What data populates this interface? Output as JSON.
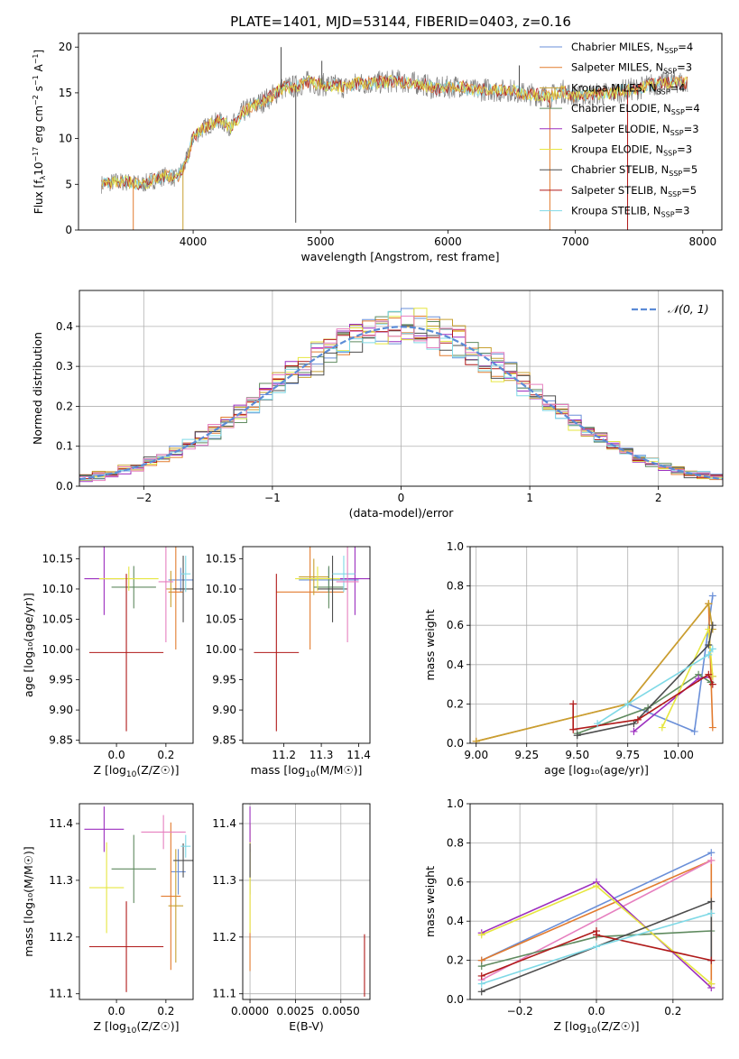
{
  "figure_title": "PLATE=1401, MJD=53144, FIBERID=0403, z=0.16",
  "colors": {
    "chabrier_miles": "#6a8fd8",
    "salpeter_miles": "#e27b2f",
    "kroupa_miles": "#c8a030",
    "chabrier_elodie": "#5f8a5f",
    "salpeter_elodie": "#9c2fbf",
    "kroupa_elodie": "#e6e640",
    "chabrier_stelib": "#4d4d4d",
    "salpeter_stelib": "#b01a1a",
    "kroupa_stelib": "#7fd9e6",
    "pink": "#e67fbf",
    "normal": "#5b8bd6",
    "grid": "#b0b0b0"
  },
  "chart_data": [
    {
      "id": "spectrum",
      "type": "line",
      "title": "PLATE=1401, MJD=53144, FIBERID=0403, z=0.16",
      "xlabel": "wavelength [Angstrom, rest frame]",
      "ylabel": "Flux [f_λ 10⁻¹⁷ erg cm⁻² s⁻¹ A⁻¹]",
      "xlim": [
        3100,
        8150
      ],
      "ylim": [
        0,
        21.5
      ],
      "xticks": [
        4000,
        5000,
        6000,
        7000,
        8000
      ],
      "yticks": [
        0,
        5,
        10,
        15,
        20
      ],
      "grid": false,
      "legend_position": "right",
      "legend": [
        {
          "label": "Chabrier MILES, N",
          "sub": "SSP",
          "tail": "=4",
          "color_key": "chabrier_miles"
        },
        {
          "label": "Salpeter MILES, N",
          "sub": "SSP",
          "tail": "=3",
          "color_key": "salpeter_miles"
        },
        {
          "label": "Kroupa MILES, N",
          "sub": "SSP",
          "tail": "=4",
          "color_key": "kroupa_miles"
        },
        {
          "label": "Chabrier ELODIE, N",
          "sub": "SSP",
          "tail": "=4",
          "color_key": "chabrier_elodie"
        },
        {
          "label": "Salpeter ELODIE, N",
          "sub": "SSP",
          "tail": "=3",
          "color_key": "salpeter_elodie"
        },
        {
          "label": "Kroupa ELODIE, N",
          "sub": "SSP",
          "tail": "=3",
          "color_key": "kroupa_elodie"
        },
        {
          "label": "Chabrier STELIB, N",
          "sub": "SSP",
          "tail": "=5",
          "color_key": "chabrier_stelib"
        },
        {
          "label": "Salpeter STELIB, N",
          "sub": "SSP",
          "tail": "=5",
          "color_key": "salpeter_stelib"
        },
        {
          "label": "Kroupa STELIB, N",
          "sub": "SSP",
          "tail": "=3",
          "color_key": "kroupa_stelib"
        }
      ],
      "continuum": [
        [
          3280,
          5.0
        ],
        [
          3400,
          5.3
        ],
        [
          3500,
          5.2
        ],
        [
          3600,
          5.0
        ],
        [
          3700,
          5.5
        ],
        [
          3800,
          6.0
        ],
        [
          3870,
          5.6
        ],
        [
          3950,
          7.6
        ],
        [
          4000,
          10.2
        ],
        [
          4100,
          11.3
        ],
        [
          4200,
          12.0
        ],
        [
          4300,
          11.2
        ],
        [
          4400,
          13.0
        ],
        [
          4500,
          13.7
        ],
        [
          4600,
          14.5
        ],
        [
          4700,
          15.5
        ],
        [
          4800,
          15.7
        ],
        [
          4900,
          16.2
        ],
        [
          5000,
          15.9
        ],
        [
          5100,
          15.8
        ],
        [
          5200,
          15.6
        ],
        [
          5300,
          16.1
        ],
        [
          5400,
          16.0
        ],
        [
          5500,
          16.2
        ],
        [
          5600,
          16.3
        ],
        [
          5700,
          16.1
        ],
        [
          5800,
          16.0
        ],
        [
          5900,
          15.4
        ],
        [
          6000,
          15.6
        ],
        [
          6100,
          15.8
        ],
        [
          6200,
          15.2
        ],
        [
          6300,
          15.4
        ],
        [
          6400,
          15.2
        ],
        [
          6500,
          15.3
        ],
        [
          6600,
          14.9
        ],
        [
          6700,
          14.8
        ],
        [
          6800,
          14.6
        ],
        [
          6900,
          15.2
        ],
        [
          7000,
          14.6
        ],
        [
          7100,
          14.8
        ],
        [
          7200,
          14.9
        ],
        [
          7300,
          15.0
        ],
        [
          7400,
          15.3
        ],
        [
          7500,
          15.5
        ],
        [
          7600,
          15.9
        ],
        [
          7700,
          16.1
        ],
        [
          7800,
          16.2
        ],
        [
          7880,
          16.1
        ]
      ],
      "spikes": [
        [
          3530,
          0
        ],
        [
          3920,
          0
        ],
        [
          4805,
          0.8
        ],
        [
          6800,
          0
        ],
        [
          7410,
          0
        ],
        [
          4690,
          20.0
        ],
        [
          5010,
          18.5
        ],
        [
          6560,
          18.0
        ]
      ]
    },
    {
      "id": "residuals",
      "type": "histogram",
      "xlabel": "(data-model)/error",
      "ylabel": "Normed distribution",
      "xlim": [
        -2.5,
        2.5
      ],
      "ylim": [
        0,
        0.49
      ],
      "xticks": [
        -2,
        -1,
        0,
        1,
        2
      ],
      "yticks": [
        0.0,
        0.1,
        0.2,
        0.3,
        0.4
      ],
      "grid": true,
      "legend_position": "top-right",
      "legend_label": "𝒩(0, 1)",
      "bin_width": 0.1
    },
    {
      "id": "age_vs_Z",
      "type": "errorbar",
      "xlabel_pre": "Z [log",
      "xlabel_sub": "10",
      "xlabel_post": "(Z/Z☉)]",
      "ylabel": "age  [log₁₀(age/yr)]",
      "xlim": [
        -0.15,
        0.31
      ],
      "ylim": [
        9.845,
        10.17
      ],
      "xticks": [
        0.0,
        0.2
      ],
      "yticks": [
        9.85,
        9.9,
        9.95,
        10.0,
        10.05,
        10.1,
        10.15
      ],
      "grid": false,
      "points": [
        {
          "c": "chabrier_miles",
          "x": 0.26,
          "xe": 0.05,
          "y": 10.115,
          "ye": 0.02
        },
        {
          "c": "salpeter_miles",
          "x": 0.24,
          "xe": 0.03,
          "y": 10.095,
          "ye": 0.095
        },
        {
          "c": "kroupa_miles",
          "x": 0.22,
          "xe": 0.02,
          "y": 10.1,
          "ye": 0.03
        },
        {
          "c": "chabrier_elodie",
          "x": 0.07,
          "xe": 0.09,
          "y": 10.103,
          "ye": 0.035
        },
        {
          "c": "salpeter_elodie",
          "x": -0.05,
          "xe": 0.08,
          "y": 10.117,
          "ye": 0.06
        },
        {
          "c": "kroupa_elodie",
          "x": 0.05,
          "xe": 0.12,
          "y": 10.117,
          "ye": 0.02
        },
        {
          "c": "chabrier_stelib",
          "x": 0.27,
          "xe": 0.04,
          "y": 10.1,
          "ye": 0.055
        },
        {
          "c": "salpeter_stelib",
          "x": 0.04,
          "xe": 0.15,
          "y": 9.995,
          "ye": 0.13
        },
        {
          "c": "kroupa_stelib",
          "x": 0.28,
          "xe": 0.02,
          "y": 10.125,
          "ye": 0.03
        },
        {
          "c": "pink",
          "x": 0.2,
          "xe": 0.03,
          "y": 10.112,
          "ye": 0.1
        }
      ]
    },
    {
      "id": "age_vs_mass",
      "type": "errorbar",
      "xlabel_pre": "mass [log",
      "xlabel_sub": "10",
      "xlabel_post": "(M/M☉)]",
      "ylabel": "",
      "xlim": [
        11.09,
        11.43
      ],
      "ylim": [
        9.845,
        10.17
      ],
      "xticks": [
        11.2,
        11.3,
        11.4
      ],
      "yticks": [
        9.85,
        9.9,
        9.95,
        10.0,
        10.05,
        10.1,
        10.15
      ],
      "grid": false,
      "points": [
        {
          "c": "chabrier_miles",
          "x": 11.32,
          "xe": 0.08,
          "y": 10.115,
          "ye": 0.02
        },
        {
          "c": "salpeter_miles",
          "x": 11.27,
          "xe": 0.09,
          "y": 10.095,
          "ye": 0.095
        },
        {
          "c": "kroupa_miles",
          "x": 11.28,
          "xe": 0.04,
          "y": 10.12,
          "ye": 0.03
        },
        {
          "c": "chabrier_elodie",
          "x": 11.32,
          "xe": 0.04,
          "y": 10.103,
          "ye": 0.035
        },
        {
          "c": "salpeter_elodie",
          "x": 11.39,
          "xe": 0.04,
          "y": 10.117,
          "ye": 0.06
        },
        {
          "c": "kroupa_elodie",
          "x": 11.29,
          "xe": 0.06,
          "y": 10.117,
          "ye": 0.02
        },
        {
          "c": "chabrier_stelib",
          "x": 11.33,
          "xe": 0.04,
          "y": 10.1,
          "ye": 0.055
        },
        {
          "c": "salpeter_stelib",
          "x": 11.18,
          "xe": 0.06,
          "y": 9.995,
          "ye": 0.13
        },
        {
          "c": "kroupa_stelib",
          "x": 11.36,
          "xe": 0.03,
          "y": 10.125,
          "ye": 0.03
        },
        {
          "c": "pink",
          "x": 11.37,
          "xe": 0.03,
          "y": 10.112,
          "ye": 0.1
        }
      ]
    },
    {
      "id": "weight_vs_age",
      "type": "line",
      "xlabel": "age  [log₁₀(age/yr)]",
      "ylabel": "mass weight",
      "xlim": [
        8.97,
        10.22
      ],
      "ylim": [
        0,
        1.0
      ],
      "xticks": [
        9.0,
        9.25,
        9.5,
        9.75,
        10.0
      ],
      "yticks": [
        0.0,
        0.2,
        0.4,
        0.6,
        0.8,
        1.0
      ],
      "grid": true,
      "series": [
        {
          "c": "chabrier_miles",
          "x": [
            9.75,
            10.08,
            10.17
          ],
          "y": [
            0.2,
            0.06,
            0.75
          ]
        },
        {
          "c": "salpeter_miles",
          "x": [
            9.0,
            9.75,
            10.15,
            10.17
          ],
          "y": [
            0.01,
            0.2,
            0.71,
            0.08
          ]
        },
        {
          "c": "kroupa_miles",
          "x": [
            9.0,
            9.75,
            10.15,
            10.17
          ],
          "y": [
            0.01,
            0.2,
            0.71,
            0.58
          ]
        },
        {
          "c": "chabrier_elodie",
          "x": [
            9.5,
            9.85,
            10.1,
            10.16
          ],
          "y": [
            0.05,
            0.18,
            0.35,
            0.31
          ]
        },
        {
          "c": "salpeter_elodie",
          "x": [
            9.78,
            10.1,
            10.17
          ],
          "y": [
            0.06,
            0.33,
            0.34
          ]
        },
        {
          "c": "kroupa_elodie",
          "x": [
            9.92,
            10.15,
            10.17
          ],
          "y": [
            0.08,
            0.58,
            0.34
          ]
        },
        {
          "c": "chabrier_stelib",
          "x": [
            9.5,
            9.78,
            10.15,
            10.17
          ],
          "y": [
            0.04,
            0.1,
            0.5,
            0.6
          ]
        },
        {
          "c": "salpeter_stelib",
          "x": [
            9.48,
            9.48,
            9.8,
            10.15,
            10.17
          ],
          "y": [
            0.2,
            0.07,
            0.12,
            0.35,
            0.3
          ]
        },
        {
          "c": "kroupa_stelib",
          "x": [
            9.6,
            9.75,
            10.15,
            10.17
          ],
          "y": [
            0.1,
            0.2,
            0.45,
            0.48
          ]
        }
      ]
    },
    {
      "id": "mass_vs_Z",
      "type": "errorbar",
      "xlabel_pre": "Z [log",
      "xlabel_sub": "10",
      "xlabel_post": "(Z/Z☉)]",
      "ylabel": "mass [log₁₀(M/M☉)]",
      "xlim": [
        -0.15,
        0.31
      ],
      "ylim": [
        11.09,
        11.435
      ],
      "xticks": [
        0.0,
        0.2
      ],
      "yticks": [
        11.1,
        11.2,
        11.3,
        11.4
      ],
      "grid": false,
      "points": [
        {
          "c": "chabrier_miles",
          "x": 0.25,
          "xe": 0.03,
          "y": 11.315,
          "ye": 0.04
        },
        {
          "c": "salpeter_miles",
          "x": 0.22,
          "xe": 0.04,
          "y": 11.272,
          "ye": 0.13
        },
        {
          "c": "kroupa_miles",
          "x": 0.24,
          "xe": 0.03,
          "y": 11.255,
          "ye": 0.1
        },
        {
          "c": "chabrier_elodie",
          "x": 0.07,
          "xe": 0.09,
          "y": 11.32,
          "ye": 0.06
        },
        {
          "c": "salpeter_elodie",
          "x": -0.05,
          "xe": 0.08,
          "y": 11.39,
          "ye": 0.04
        },
        {
          "c": "kroupa_elodie",
          "x": -0.04,
          "xe": 0.07,
          "y": 11.287,
          "ye": 0.08
        },
        {
          "c": "chabrier_stelib",
          "x": 0.27,
          "xe": 0.04,
          "y": 11.335,
          "ye": 0.03
        },
        {
          "c": "salpeter_stelib",
          "x": 0.04,
          "xe": 0.15,
          "y": 11.183,
          "ye": 0.08
        },
        {
          "c": "kroupa_stelib",
          "x": 0.28,
          "xe": 0.02,
          "y": 11.36,
          "ye": 0.02
        },
        {
          "c": "pink",
          "x": 0.19,
          "xe": 0.09,
          "y": 11.385,
          "ye": 0.03
        }
      ]
    },
    {
      "id": "mass_vs_ebv",
      "type": "errorbar",
      "xlabel_pre": "E(B-V)",
      "xlabel_sub": "",
      "xlabel_post": "",
      "ylabel": "",
      "xlim": [
        -0.0004,
        0.0066
      ],
      "ylim": [
        11.09,
        11.435
      ],
      "xticks": [
        0.0,
        0.0025,
        0.005
      ],
      "xtick_labels": [
        "0.0000",
        "0.0025",
        "0.0050"
      ],
      "yticks": [
        11.1,
        11.2,
        11.3,
        11.4
      ],
      "grid": true,
      "points": [
        {
          "c": "chabrier_miles",
          "x": 0.0,
          "xe": 0.0,
          "y": 11.315,
          "ye": 0.04
        },
        {
          "c": "salpeter_miles",
          "x": 0.0,
          "xe": 0.0,
          "y": 11.27,
          "ye": 0.13
        },
        {
          "c": "salpeter_elodie",
          "x": 0.0,
          "xe": 0.0,
          "y": 11.39,
          "ye": 0.04
        },
        {
          "c": "kroupa_elodie",
          "x": 0.0,
          "xe": 0.0,
          "y": 11.287,
          "ye": 0.08
        },
        {
          "c": "chabrier_stelib",
          "x": 0.0,
          "xe": 0.0,
          "y": 11.335,
          "ye": 0.03
        },
        {
          "c": "salpeter_stelib",
          "x": 0.0063,
          "xe": 0.0,
          "y": 11.15,
          "ye": 0.055
        }
      ]
    },
    {
      "id": "weight_vs_Z",
      "type": "line",
      "xlabel_pre": "Z [log",
      "xlabel_sub": "10",
      "xlabel_post": "(Z/Z☉)]",
      "ylabel": "mass weight",
      "xlim": [
        -0.33,
        0.33
      ],
      "ylim": [
        0,
        1.0
      ],
      "xticks": [
        -0.2,
        0.0,
        0.2
      ],
      "yticks": [
        0.0,
        0.2,
        0.4,
        0.6,
        0.8,
        1.0
      ],
      "grid": true,
      "series": [
        {
          "c": "chabrier_miles",
          "x": [
            -0.3,
            0.3
          ],
          "y": [
            0.2,
            0.75
          ]
        },
        {
          "c": "salpeter_miles",
          "x": [
            -0.3,
            0.3,
            0.3
          ],
          "y": [
            0.2,
            0.71,
            0.08
          ]
        },
        {
          "c": "pink",
          "x": [
            -0.3,
            0.3
          ],
          "y": [
            0.1,
            0.71
          ]
        },
        {
          "c": "chabrier_elodie",
          "x": [
            -0.3,
            0.0,
            0.3
          ],
          "y": [
            0.17,
            0.32,
            0.35
          ]
        },
        {
          "c": "salpeter_elodie",
          "x": [
            -0.3,
            0.0,
            0.3
          ],
          "y": [
            0.34,
            0.6,
            0.06
          ]
        },
        {
          "c": "kroupa_elodie",
          "x": [
            -0.3,
            0.0,
            0.3
          ],
          "y": [
            0.33,
            0.58,
            0.08
          ]
        },
        {
          "c": "chabrier_stelib",
          "x": [
            -0.3,
            0.3,
            0.3
          ],
          "y": [
            0.04,
            0.5,
            0.2
          ]
        },
        {
          "c": "salpeter_stelib",
          "x": [
            -0.3,
            0.0,
            0.0,
            0.3
          ],
          "y": [
            0.12,
            0.35,
            0.33,
            0.2
          ]
        },
        {
          "c": "kroupa_stelib",
          "x": [
            -0.3,
            0.0,
            0.3
          ],
          "y": [
            0.08,
            0.27,
            0.44
          ]
        }
      ]
    }
  ]
}
